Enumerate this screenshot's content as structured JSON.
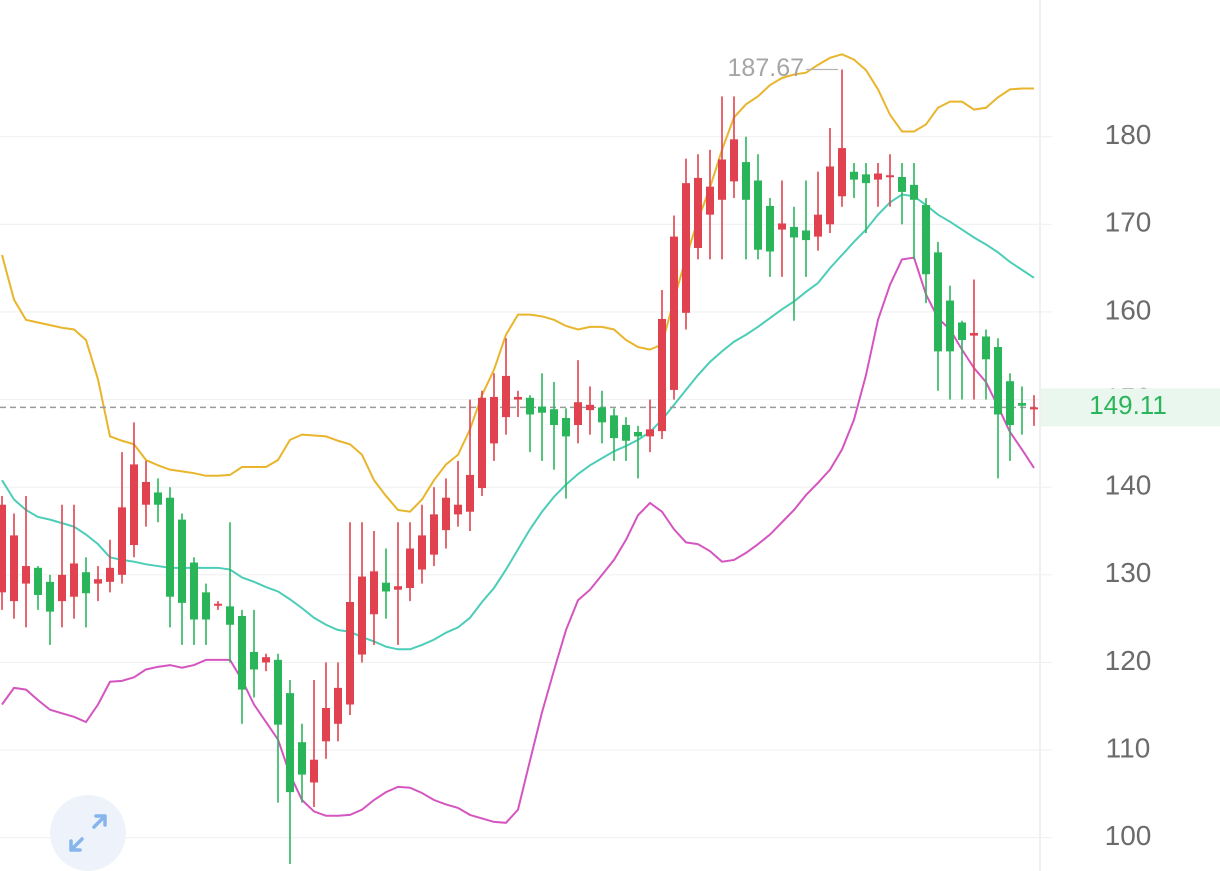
{
  "chart_data": {
    "type": "candlestick",
    "ylim": [
      96.2,
      195.6
    ],
    "yticks": [
      100,
      110,
      120,
      130,
      140,
      150,
      160,
      170,
      180
    ],
    "grid": true,
    "up_color": "#e0424f",
    "down_color": "#2bb55b",
    "high_label": 187.67,
    "last_price": 149.11,
    "last_price_color": "#2bb55b",
    "open": [
      128,
      127,
      129,
      130.8,
      129.2,
      127,
      127.5,
      130.3,
      129,
      129.2,
      130,
      133.4,
      138,
      139.4,
      138.8,
      136.3,
      131.4,
      128,
      126.5,
      126.4,
      125.3,
      121.2,
      120,
      120.3,
      116.5,
      110.9,
      106.3,
      111,
      113,
      115.2,
      120.9,
      125.5,
      129.1,
      128.3,
      128.5,
      130.6,
      132.3,
      135.1,
      136.9,
      137.2,
      139.9,
      145,
      148,
      150,
      150.2,
      149.2,
      148.9,
      147.9,
      147.1,
      148.8,
      149.1,
      148.2,
      147.1,
      146.3,
      145.8,
      146.4,
      151.1,
      159.9,
      167.3,
      171.1,
      172.8,
      174.9,
      177.1,
      175,
      172.1,
      169.4,
      169.7,
      169.3,
      168.6,
      170,
      173.2,
      176,
      175.7,
      175.1,
      175.4,
      175.4,
      174.5,
      172.2,
      166.8,
      161.3,
      158.8,
      157.3,
      157.2,
      156,
      152.1,
      149.6,
      149.1
    ],
    "high": [
      139,
      137,
      139,
      131,
      130,
      138,
      138,
      132,
      131,
      134,
      144,
      147.4,
      143,
      141,
      140,
      137,
      132,
      129,
      127,
      136,
      126,
      126,
      121,
      121,
      118,
      113,
      118,
      120,
      120,
      136,
      136,
      135,
      133,
      136,
      136,
      138,
      140,
      141,
      143,
      150,
      151,
      153,
      157,
      151,
      150.5,
      153,
      152,
      149,
      154.5,
      151.5,
      151,
      149,
      148,
      147,
      150,
      162.5,
      171,
      177.5,
      178,
      178.5,
      184.6,
      184.6,
      180,
      178,
      173,
      175,
      172,
      175,
      176,
      181,
      187.67,
      177,
      177,
      177,
      178,
      177,
      177,
      173,
      168,
      163,
      159,
      163.7,
      158,
      157,
      153,
      151.5,
      150.5
    ],
    "low": [
      126,
      125,
      124,
      126,
      122,
      124,
      125,
      124,
      127,
      128,
      129,
      132,
      135.5,
      136,
      124,
      122,
      122,
      122,
      126,
      120,
      113,
      116,
      119,
      104,
      97,
      104,
      103.5,
      109,
      111,
      114,
      120,
      122,
      125,
      122,
      127,
      129,
      131,
      133,
      135.5,
      135,
      139,
      143,
      146,
      148,
      144,
      143,
      142,
      138.7,
      145,
      146,
      145,
      143,
      143,
      141,
      144,
      145.5,
      150,
      158,
      166,
      166,
      166,
      173,
      166,
      166,
      164,
      164,
      159,
      164,
      167,
      169,
      172,
      173,
      169,
      172,
      172,
      170,
      166,
      161,
      151,
      150,
      150,
      150,
      150,
      141,
      143,
      146,
      147
    ],
    "close": [
      138,
      134.5,
      131,
      127.7,
      125.8,
      130,
      131.3,
      127.9,
      129.5,
      130.8,
      137.7,
      142.6,
      140.6,
      138,
      127.5,
      126.8,
      124.9,
      124.9,
      126.7,
      124.3,
      116.9,
      119.2,
      120.6,
      112.9,
      105.2,
      107.2,
      108.9,
      114.8,
      117.1,
      126.9,
      129.8,
      130.4,
      128.1,
      128.7,
      133,
      134.5,
      136.9,
      138.8,
      138,
      141.4,
      150.2,
      150.3,
      152.7,
      150.3,
      148.3,
      148.5,
      147.1,
      145.8,
      149.7,
      149.4,
      147.4,
      145.6,
      145.3,
      145.8,
      146.6,
      159.2,
      168.6,
      174.7,
      175.3,
      174.3,
      177.4,
      179.7,
      172.8,
      167.1,
      166.9,
      170.1,
      168.5,
      168.2,
      171.1,
      176.6,
      178.7,
      175.1,
      174.7,
      175.8,
      175.6,
      173.7,
      172.8,
      164.3,
      155.5,
      155.5,
      156.8,
      157.6,
      154.6,
      148.3,
      147.1,
      149.3,
      149.11
    ],
    "lines": [
      {
        "color": "#e8b52c",
        "values": [
          166.5,
          161.4,
          159.1,
          158.8,
          158.5,
          158.2,
          158,
          156.8,
          152.3,
          145.8,
          145.3,
          144.9,
          143.1,
          142.5,
          142,
          141.8,
          141.6,
          141.3,
          141.3,
          141.4,
          142.3,
          142.3,
          142.3,
          143.1,
          145.4,
          146,
          145.9,
          145.8,
          145.3,
          144.9,
          143.7,
          140.8,
          139,
          137.4,
          137.2,
          138.6,
          140.8,
          142.6,
          143.7,
          146.6,
          150.5,
          153.4,
          157.4,
          159.7,
          159.7,
          159.5,
          159.1,
          158.4,
          158,
          158.3,
          158.3,
          158,
          156.8,
          156,
          155.7,
          156.3,
          161.4,
          166.2,
          170.5,
          174.2,
          178.5,
          182.2,
          183.7,
          184.6,
          185.9,
          186.7,
          187.1,
          187.3,
          188.2,
          189,
          189.4,
          188.8,
          187.6,
          185.4,
          182.5,
          180.6,
          180.6,
          181.4,
          183.3,
          184,
          184,
          183.1,
          183.3,
          184.5,
          185.4,
          185.5,
          185.5
        ]
      },
      {
        "color": "#4ccdb8",
        "values": [
          140.8,
          138.6,
          137.4,
          136.6,
          136.3,
          135.9,
          135.5,
          134.6,
          133.5,
          132,
          131.7,
          131.5,
          131.2,
          131,
          130.8,
          130.8,
          130.8,
          130.8,
          130.8,
          130.6,
          129.7,
          129.2,
          128.6,
          128.1,
          127.2,
          126.2,
          125.1,
          124.3,
          123.7,
          123.5,
          122.9,
          122.4,
          121.8,
          121.5,
          121.5,
          122,
          122.6,
          123.4,
          124,
          125.1,
          126.9,
          128.5,
          130.6,
          132.9,
          135.2,
          137.2,
          138.9,
          140.3,
          141.5,
          142.5,
          143.3,
          144.1,
          144.7,
          145.4,
          146.3,
          147.7,
          149.4,
          151.1,
          152.8,
          154.3,
          155.5,
          156.6,
          157.4,
          158.3,
          159.3,
          160.3,
          161.2,
          162.3,
          163.3,
          165,
          166.5,
          168,
          169.4,
          171.1,
          172.5,
          173.4,
          173.2,
          172.2,
          171.1,
          170.3,
          169.4,
          168.5,
          167.7,
          166.8,
          165.7,
          164.8,
          163.9
        ]
      },
      {
        "color": "#d455c0",
        "values": [
          115.2,
          117.1,
          116.9,
          115.7,
          114.6,
          114.2,
          113.8,
          113.2,
          115.2,
          117.8,
          117.9,
          118.3,
          119.2,
          119.5,
          119.7,
          119.4,
          119.7,
          120.3,
          120.3,
          120.3,
          118,
          115.2,
          113.2,
          111.2,
          107.2,
          104.3,
          103,
          102.5,
          102.5,
          102.6,
          103.2,
          104.3,
          105.2,
          105.8,
          105.7,
          105.1,
          104.3,
          103.8,
          103.4,
          102.6,
          102.2,
          101.8,
          101.7,
          103.2,
          108.8,
          114.3,
          119.1,
          123.7,
          127.1,
          128.3,
          130,
          131.7,
          134,
          136.8,
          138.2,
          137.2,
          135.2,
          133.7,
          133.5,
          132.7,
          131.5,
          131.7,
          132.5,
          133.5,
          134.6,
          136,
          137.4,
          139.1,
          140.5,
          142,
          144.3,
          147.7,
          152.8,
          159.1,
          163.1,
          166,
          166.2,
          162,
          159.3,
          158,
          155.7,
          153.6,
          152,
          149.2,
          146.3,
          144.3,
          142.2
        ]
      }
    ]
  }
}
